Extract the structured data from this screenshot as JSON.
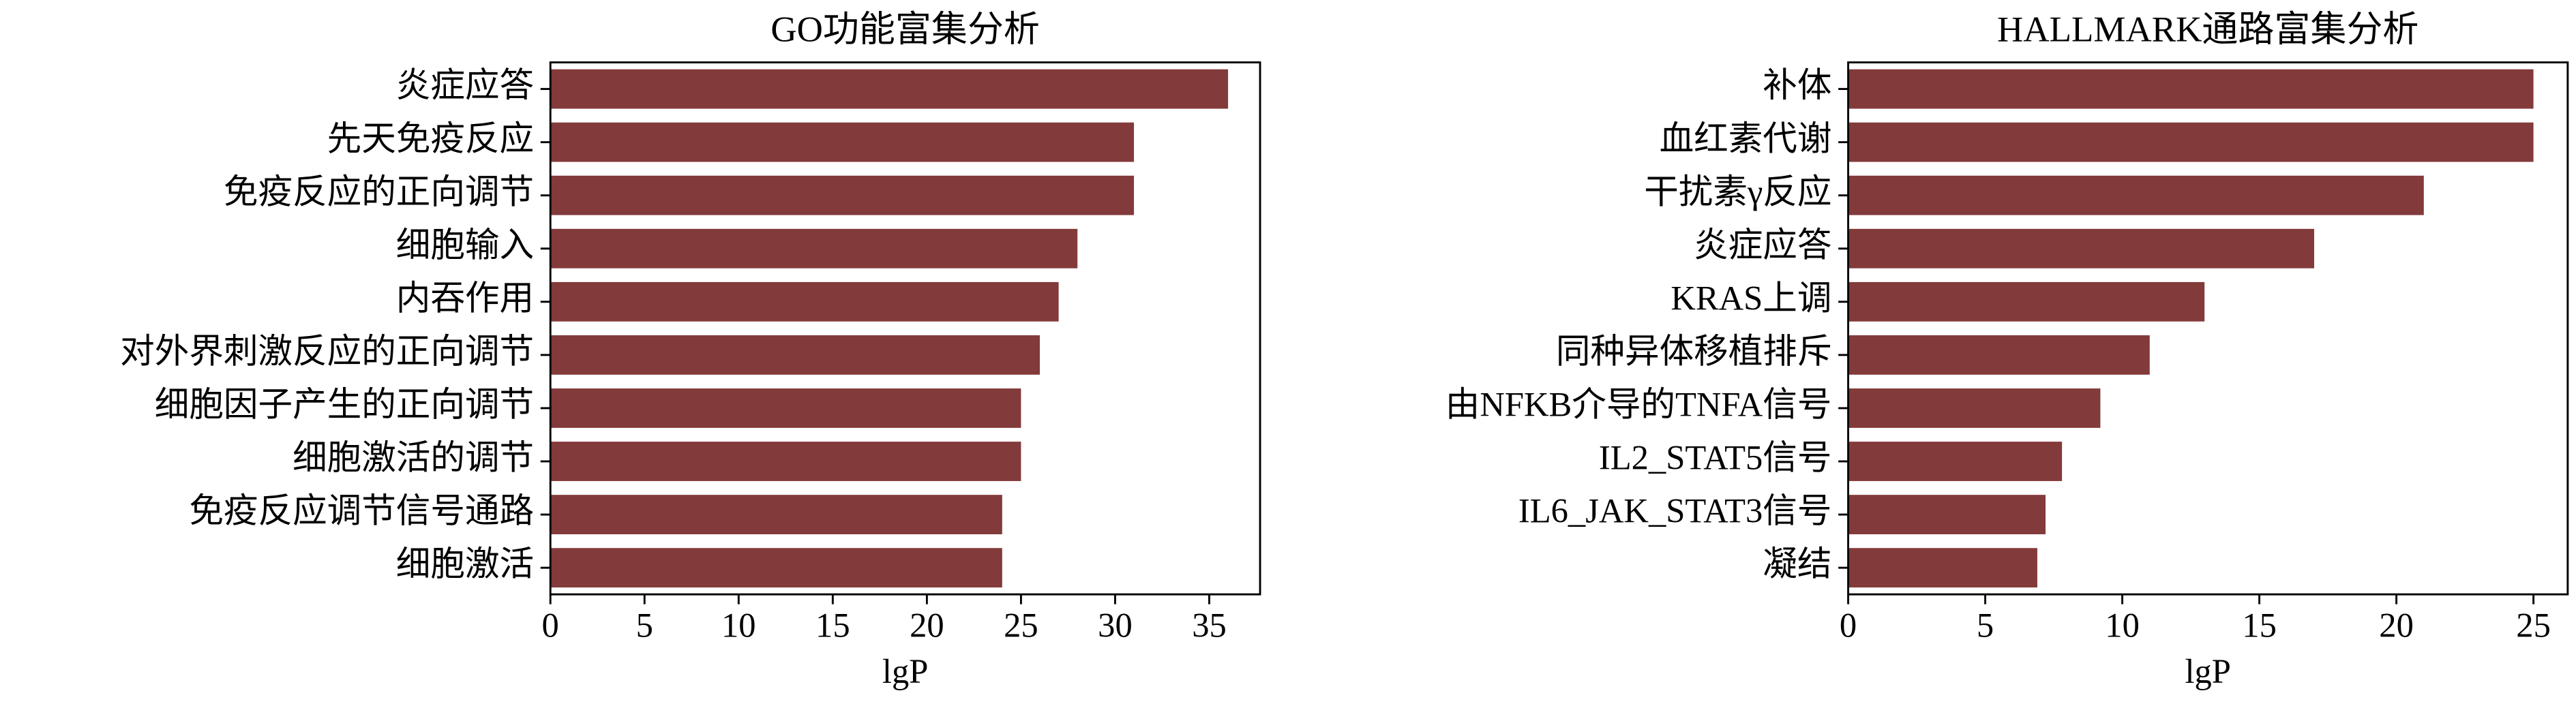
{
  "chart_data": [
    {
      "type": "barh",
      "title": "GO功能富集分析",
      "xlabel": "lgP",
      "categories": [
        "炎症应答",
        "先天免疫反应",
        "免疫反应的正向调节",
        "细胞输入",
        "内吞作用",
        "对外界刺激反应的正向调节",
        "细胞因子产生的正向调节",
        "细胞激活的调节",
        "免疫反应调节信号通路",
        "细胞激活"
      ],
      "values": [
        36,
        31,
        31,
        28,
        27,
        26,
        25,
        25,
        24,
        24
      ],
      "color": "#833a3a",
      "xlim": [
        0,
        37.7
      ],
      "xticks": [
        0,
        5,
        10,
        15,
        20,
        25,
        30,
        35
      ]
    },
    {
      "type": "barh",
      "title": "HALLMARK通路富集分析",
      "xlabel": "lgP",
      "categories": [
        "补体",
        "血红素代谢",
        "干扰素γ反应",
        "炎症应答",
        "KRAS上调",
        "同种异体移植排斥",
        "由NFKB介导的TNFA信号",
        "IL2_STAT5信号",
        "IL6_JAK_STAT3信号",
        "凝结"
      ],
      "values": [
        25,
        25,
        21,
        17,
        13,
        11,
        9.2,
        7.8,
        7.2,
        6.9
      ],
      "color": "#833a3a",
      "xlim": [
        0,
        26.25
      ],
      "xticks": [
        0,
        5,
        10,
        15,
        20,
        25
      ]
    }
  ]
}
